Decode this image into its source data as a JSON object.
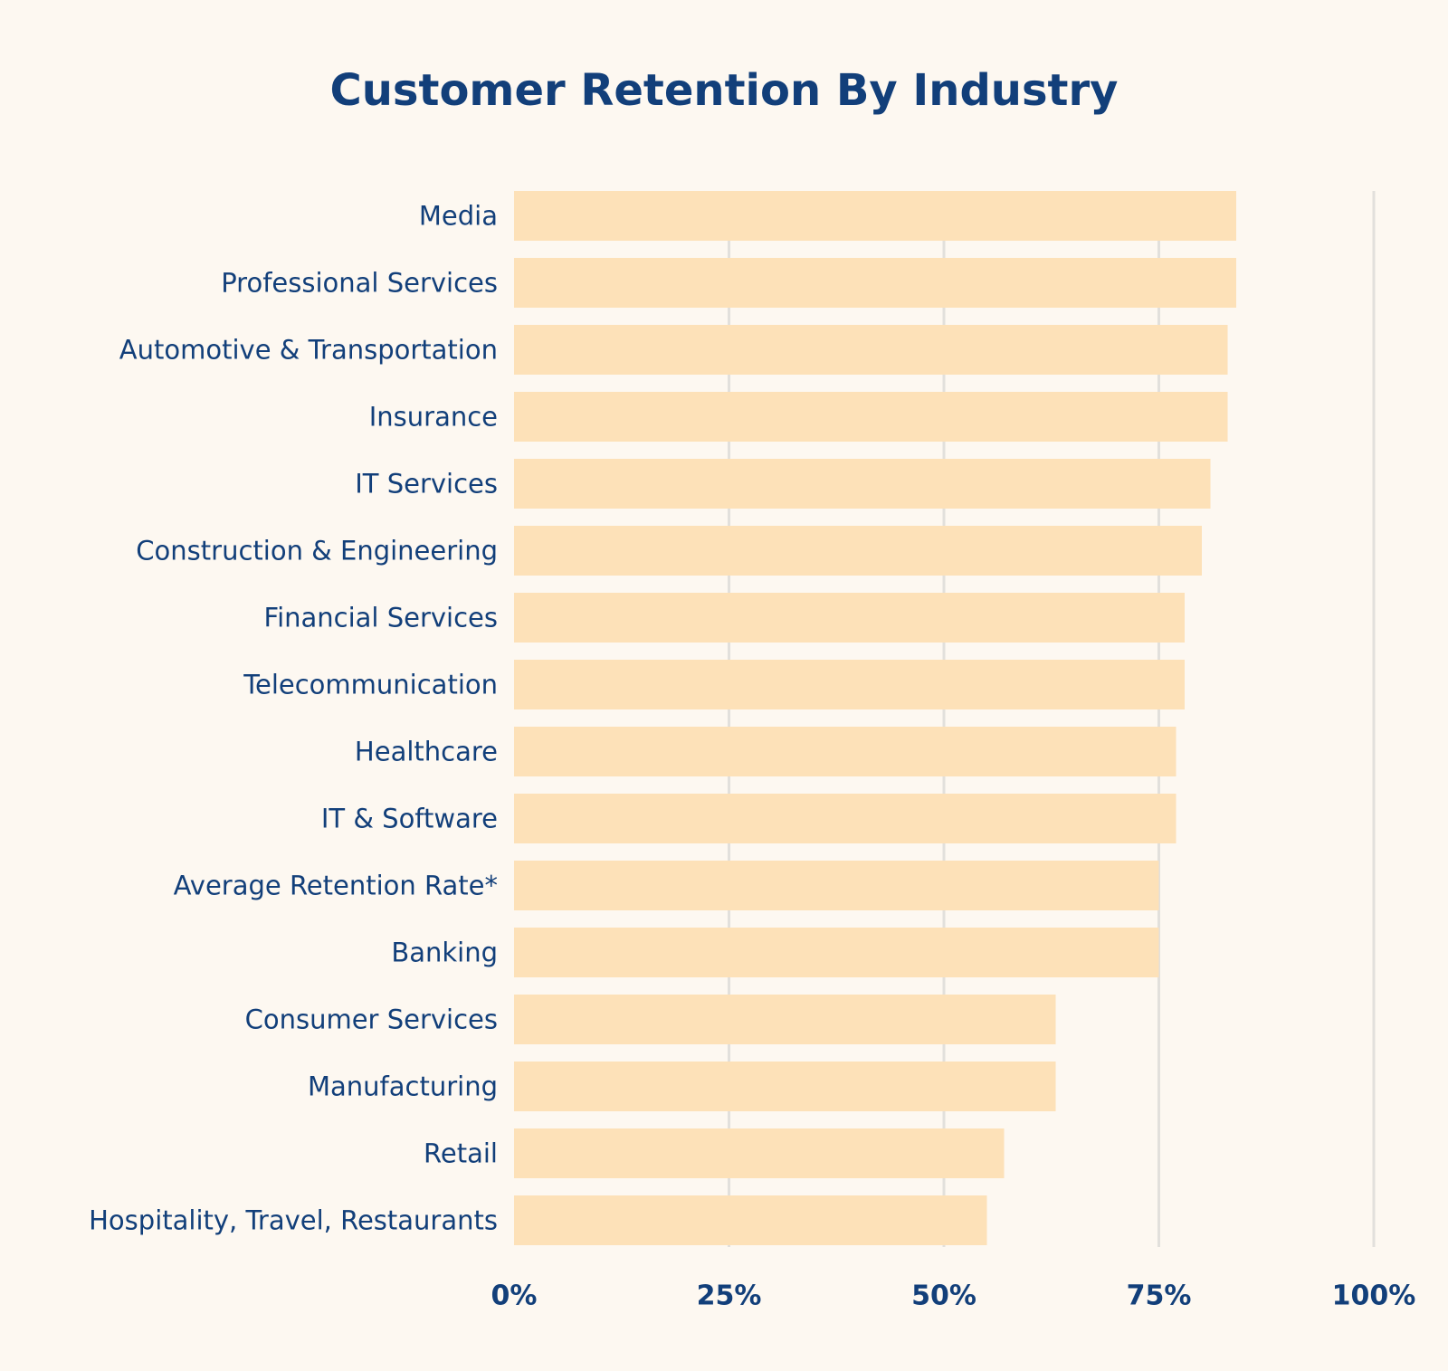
{
  "chart_data": {
    "type": "bar",
    "orientation": "horizontal",
    "title": "Customer Retention By Industry",
    "xlabel": "",
    "ylabel": "",
    "xlim": [
      0,
      100
    ],
    "x_ticks": [
      0,
      25,
      50,
      75,
      100
    ],
    "x_tick_labels": [
      "0%",
      "25%",
      "50%",
      "75%",
      "100%"
    ],
    "grid": true,
    "legend": "none",
    "categories": [
      "Media",
      "Professional Services",
      "Automotive & Transportation",
      "Insurance",
      "IT Services",
      "Construction & Engineering",
      "Financial Services",
      "Telecommunication",
      "Healthcare",
      "IT & Software",
      "Average Retention Rate*",
      "Banking",
      "Consumer Services",
      "Manufacturing",
      "Retail",
      "Hospitality, Travel, Restaurants"
    ],
    "values": [
      84,
      84,
      83,
      83,
      81,
      80,
      78,
      78,
      77,
      77,
      75,
      75,
      63,
      63,
      57,
      55
    ],
    "unit": "%"
  },
  "colors": {
    "background": "#fdf8f1",
    "bar": "#fde1b8",
    "text": "#123f7a",
    "grid": "#e2e0dc"
  }
}
